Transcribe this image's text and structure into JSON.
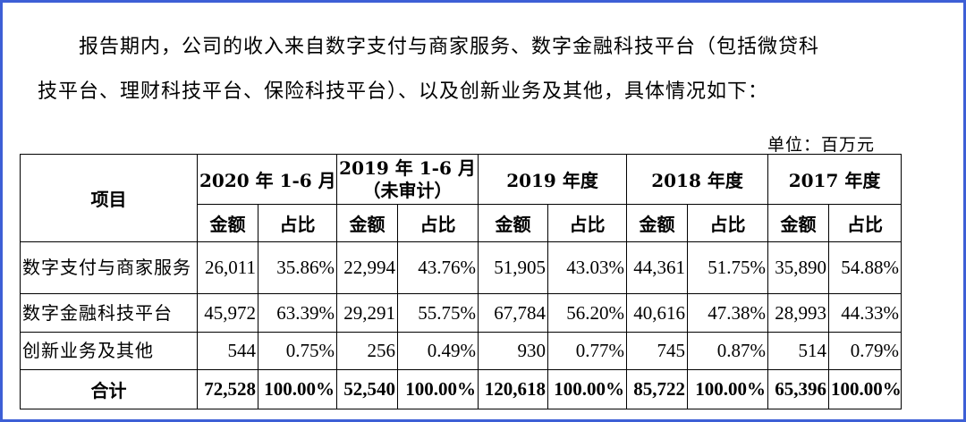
{
  "intro": {
    "line1": "报告期内，公司的收入来自数字支付与商家服务、数字金融科技平台（包括微贷科",
    "line2": "技平台、理财科技平台、保险科技平台）、以及创新业务及其他，具体情况如下："
  },
  "unit": "单位：百万元",
  "table": {
    "item_header": "项目",
    "periods": [
      {
        "label": "2020 年 1-6 月",
        "sub": ""
      },
      {
        "label": "2019 年 1-6 月",
        "sub": "（未审计）"
      },
      {
        "label": "2019 年度",
        "sub": ""
      },
      {
        "label": "2018 年度",
        "sub": ""
      },
      {
        "label": "2017 年度",
        "sub": ""
      }
    ],
    "amount_label": "金额",
    "ratio_label": "占比",
    "rows": [
      {
        "name": "数字支付与商家服务",
        "cells": [
          "26,011",
          "35.86%",
          "22,994",
          "43.76%",
          "51,905",
          "43.03%",
          "44,361",
          "51.75%",
          "35,890",
          "54.88%"
        ]
      },
      {
        "name": "数字金融科技平台",
        "cells": [
          "45,972",
          "63.39%",
          "29,291",
          "55.75%",
          "67,784",
          "56.20%",
          "40,616",
          "47.38%",
          "28,993",
          "44.33%"
        ]
      },
      {
        "name": "创新业务及其他",
        "cells": [
          "544",
          "0.75%",
          "256",
          "0.49%",
          "930",
          "0.77%",
          "745",
          "0.87%",
          "514",
          "0.79%"
        ]
      }
    ],
    "total": {
      "name": "合计",
      "cells": [
        "72,528",
        "100.00%",
        "52,540",
        "100.00%",
        "120,618",
        "100.00%",
        "85,722",
        "100.00%",
        "65,396",
        "100.00%"
      ]
    }
  }
}
